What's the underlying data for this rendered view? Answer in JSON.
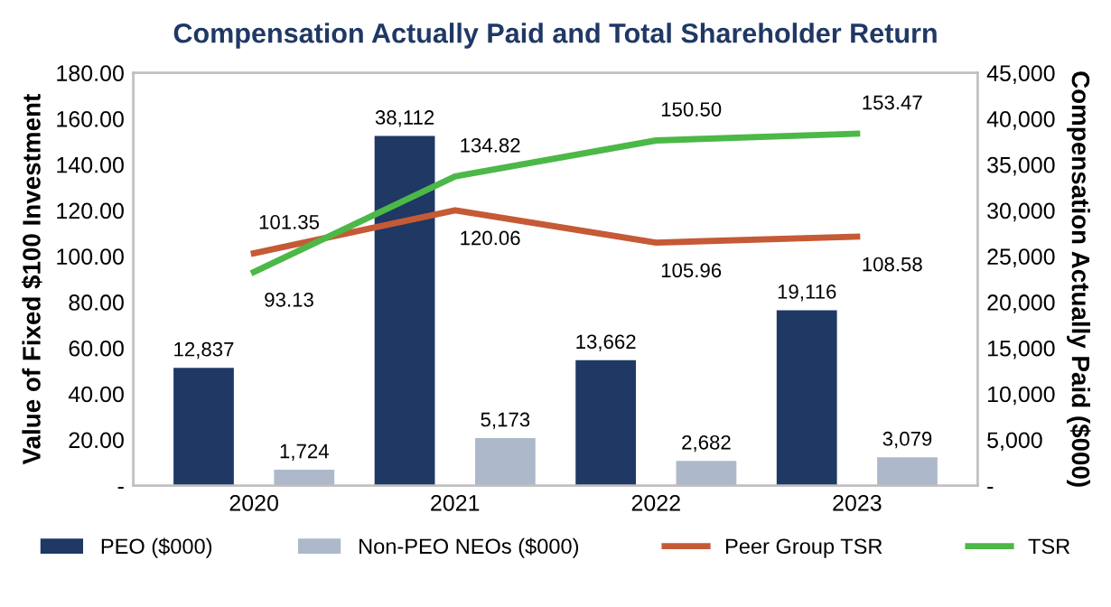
{
  "chart_data": {
    "type": "bar",
    "title": "Compensation Actually Paid and Total Shareholder Return",
    "categories": [
      "2020",
      "2021",
      "2022",
      "2023"
    ],
    "ylabel": "Value of Fixed $100 Investment",
    "y2label": "Compensation Actually Paid ($000)",
    "ylim": [
      0,
      180
    ],
    "yticks": [
      {
        "value": 0,
        "label": "-"
      },
      {
        "value": 20,
        "label": "20.00"
      },
      {
        "value": 40,
        "label": "40.00"
      },
      {
        "value": 60,
        "label": "60.00"
      },
      {
        "value": 80,
        "label": "80.00"
      },
      {
        "value": 100,
        "label": "100.00"
      },
      {
        "value": 120,
        "label": "120.00"
      },
      {
        "value": 140,
        "label": "140.00"
      },
      {
        "value": 160,
        "label": "160.00"
      },
      {
        "value": 180,
        "label": "180.00"
      }
    ],
    "y2lim": [
      0,
      45000
    ],
    "y2ticks": [
      {
        "value": 0,
        "label": "-"
      },
      {
        "value": 5000,
        "label": "5,000"
      },
      {
        "value": 10000,
        "label": "10,000"
      },
      {
        "value": 15000,
        "label": "15,000"
      },
      {
        "value": 20000,
        "label": "20,000"
      },
      {
        "value": 25000,
        "label": "25,000"
      },
      {
        "value": 30000,
        "label": "30,000"
      },
      {
        "value": 35000,
        "label": "35,000"
      },
      {
        "value": 40000,
        "label": "40,000"
      },
      {
        "value": 45000,
        "label": "45,000"
      }
    ],
    "series": [
      {
        "name": "PEO ($000)",
        "axis": "y2",
        "color": "#1f3864",
        "values": [
          12837,
          38112,
          13662,
          19116
        ],
        "value_labels": [
          "12,837",
          "38,112",
          "13,662",
          "19,116"
        ]
      },
      {
        "name": "Non-PEO NEOs ($000)",
        "axis": "y2",
        "color": "#adb9ca",
        "values": [
          1724,
          5173,
          2682,
          3079
        ],
        "value_labels": [
          "1,724",
          "5,173",
          "2,682",
          "3,079"
        ]
      },
      {
        "name": "Peer Group TSR",
        "type": "line",
        "color": "#c55a36",
        "values": [
          101.35,
          120.06,
          105.96,
          108.58
        ],
        "value_labels": [
          "101.35",
          "120.06",
          "105.96",
          "108.58"
        ]
      },
      {
        "name": "TSR",
        "type": "line",
        "color": "#4cb848",
        "values": [
          93.13,
          134.82,
          150.5,
          153.47
        ],
        "value_labels": [
          "93.13",
          "134.82",
          "150.50",
          "153.47"
        ]
      }
    ],
    "legend": "bottom",
    "grid": false,
    "marker": "none",
    "line_style": "solid"
  }
}
